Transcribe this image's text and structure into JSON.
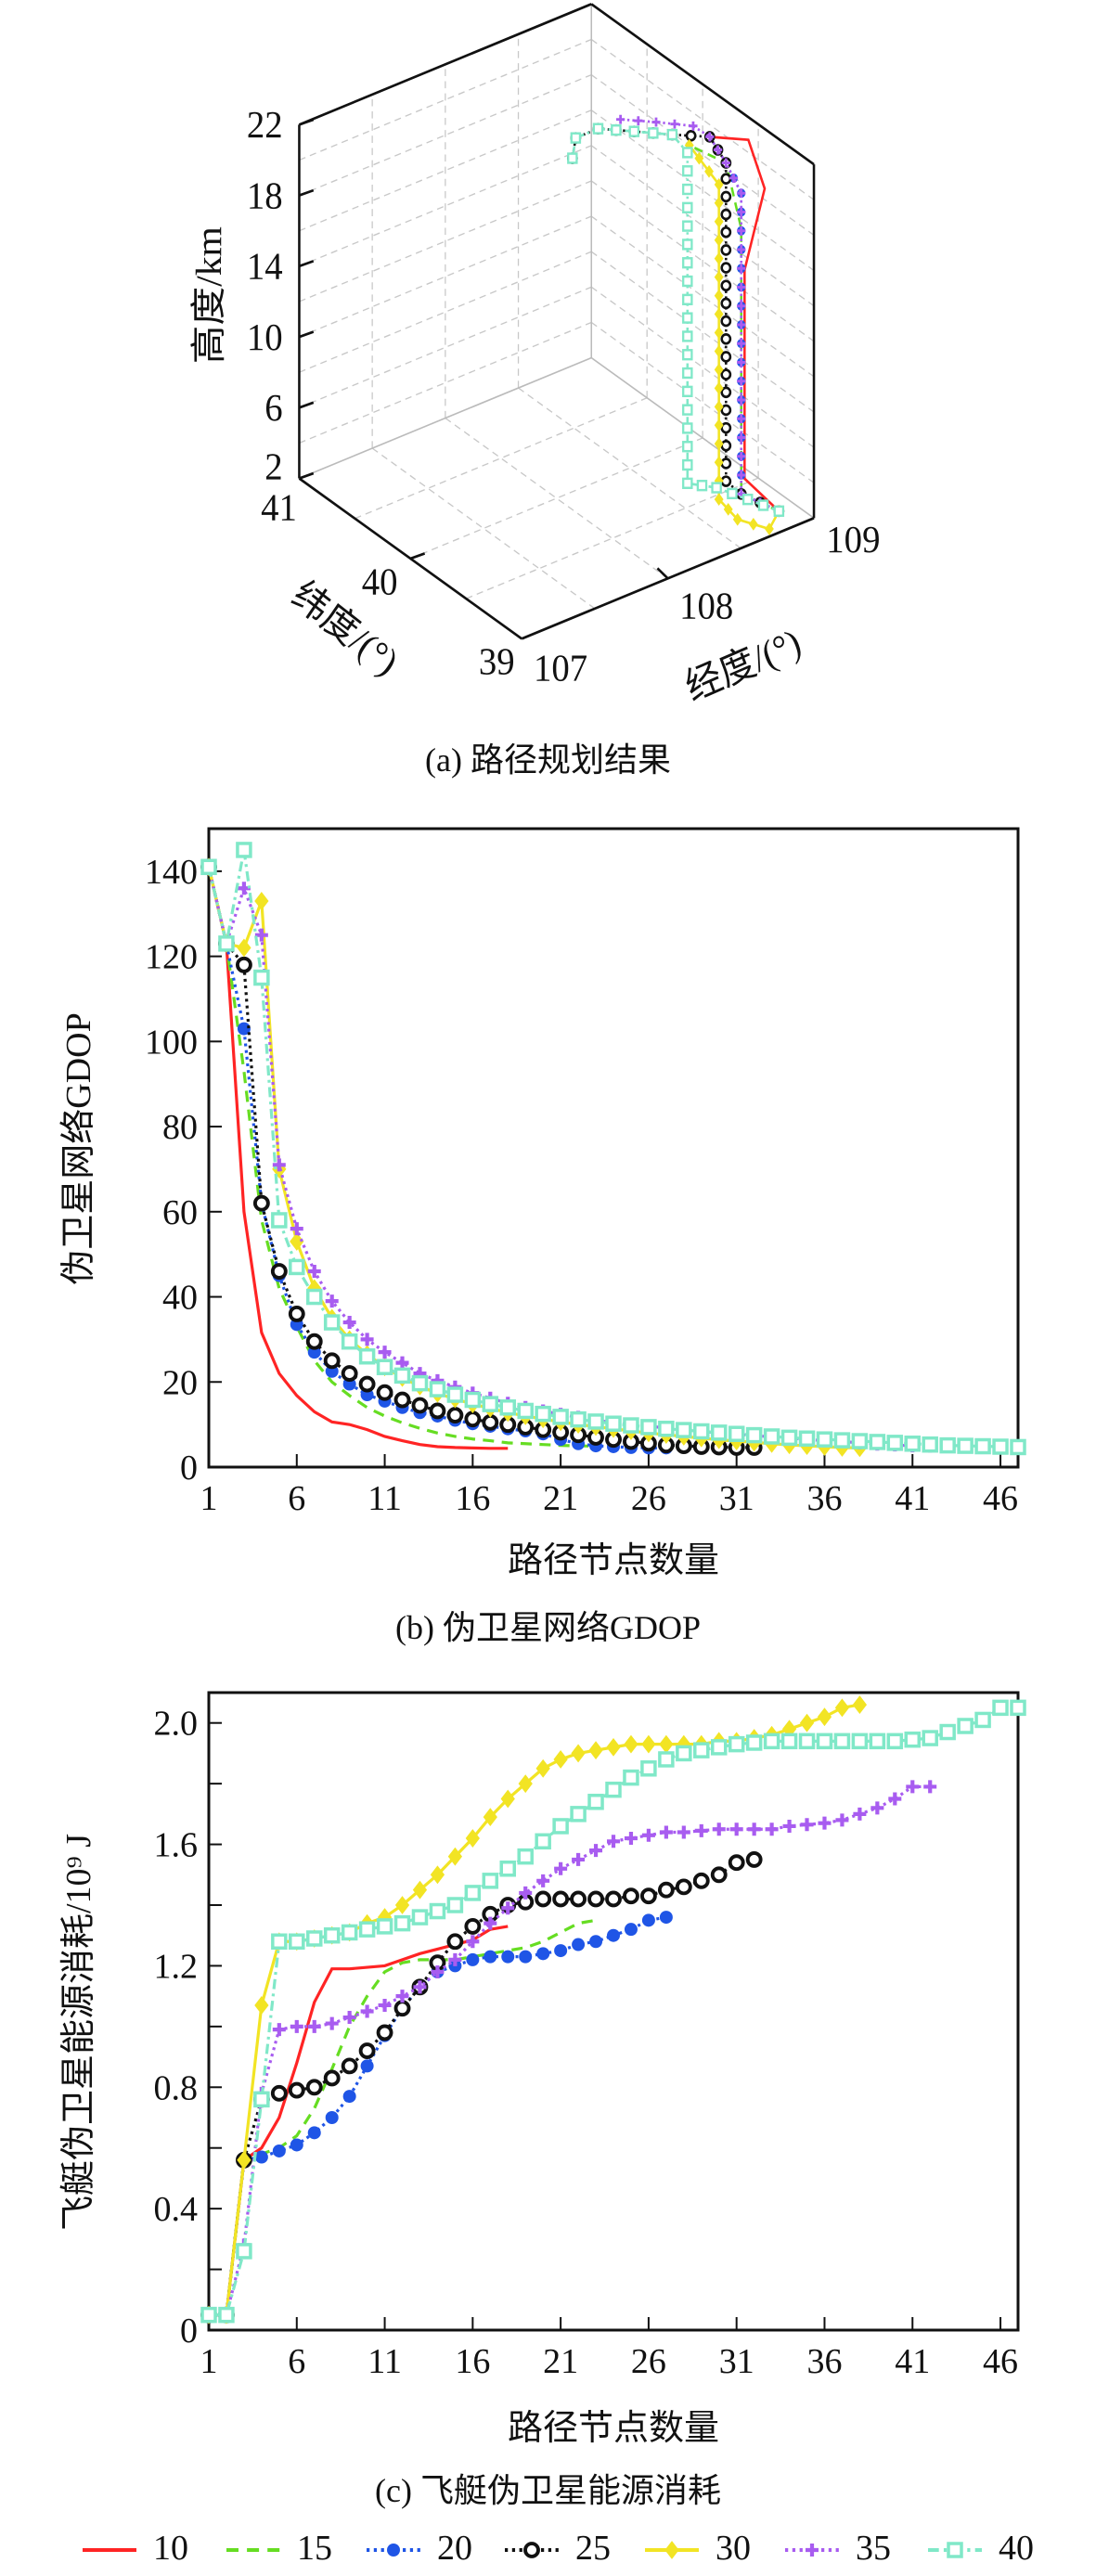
{
  "figure": {
    "caption_a": "(a) 路径规划结果",
    "caption_b": "(b) 伪卫星网络GDOP",
    "caption_c": "(c) 飞艇伪卫星能源消耗"
  },
  "legend": [
    {
      "label": "10",
      "color": "#ff2424",
      "style": "solid",
      "marker": "none"
    },
    {
      "label": "15",
      "color": "#66dd22",
      "style": "dashed",
      "marker": "none"
    },
    {
      "label": "20",
      "color": "#1f55e6",
      "style": "dotted",
      "marker": "filled-circle"
    },
    {
      "label": "25",
      "color": "#111111",
      "style": "dotted",
      "marker": "open-circle"
    },
    {
      "label": "30",
      "color": "#f2e424",
      "style": "solid",
      "marker": "diamond"
    },
    {
      "label": "35",
      "color": "#a85cf0",
      "style": "dotted",
      "marker": "plus"
    },
    {
      "label": "40",
      "color": "#80e8c8",
      "style": "dash-dot",
      "marker": "square"
    }
  ],
  "chart_data": [
    {
      "type": "line3d",
      "xlabel": "经度/(°)",
      "ylabel": "纬度/(°)",
      "zlabel": "高度/km",
      "xlim": [
        107,
        109
      ],
      "ylim": [
        39,
        41
      ],
      "zlim": [
        2,
        22
      ],
      "xticks": [
        "107",
        "108",
        "109"
      ],
      "yticks": [
        "39",
        "40",
        "41"
      ],
      "zticks": [
        "2",
        "6",
        "10",
        "14",
        "18",
        "22"
      ],
      "grid": true,
      "series": [
        {
          "name": "10",
          "points": [
            [
              108.89,
              39.17,
              2
            ],
            [
              108.83,
              39.4,
              3
            ],
            [
              108.83,
              39.4,
              14.8
            ],
            [
              108.96,
              39.39,
              19
            ],
            [
              108.97,
              39.55,
              21
            ],
            [
              108.82,
              39.7,
              21
            ]
          ]
        },
        {
          "name": "15",
          "points": [
            [
              108.89,
              39.17,
              2
            ],
            [
              108.83,
              39.43,
              2
            ],
            [
              108.83,
              39.43,
              17
            ],
            [
              108.84,
              39.58,
              20
            ],
            [
              108.68,
              39.7,
              21
            ]
          ]
        },
        {
          "name": "20",
          "points": [
            [
              108.89,
              39.17,
              2
            ],
            [
              108.83,
              39.43,
              2
            ],
            [
              108.83,
              39.43,
              19
            ],
            [
              108.84,
              39.58,
              20
            ],
            [
              108.82,
              39.7,
              21
            ]
          ]
        },
        {
          "name": "25",
          "points": [
            [
              108.89,
              39.17,
              2
            ],
            [
              108.83,
              39.43,
              2
            ],
            [
              108.84,
              39.58,
              2
            ],
            [
              108.84,
              39.58,
              19.1
            ],
            [
              108.84,
              39.58,
              20
            ],
            [
              108.82,
              39.7,
              21
            ],
            [
              108.67,
              39.84,
              21
            ],
            [
              108.47,
              39.92,
              21.5
            ],
            [
              108.33,
              40.06,
              21.5
            ],
            [
              108.23,
              40.13,
              21
            ],
            [
              108.2,
              40.12,
              20
            ]
          ]
        },
        {
          "name": "30",
          "points": [
            [
              108.89,
              39.17,
              2
            ],
            [
              108.74,
              39.06,
              2
            ],
            [
              108.66,
              39.24,
              2
            ],
            [
              108.7,
              39.46,
              2
            ],
            [
              108.7,
              39.46,
              19.8
            ],
            [
              108.68,
              39.7,
              21
            ]
          ]
        },
        {
          "name": "35",
          "points": [
            [
              108.89,
              39.17,
              2
            ],
            [
              108.83,
              39.43,
              2
            ],
            [
              108.83,
              39.43,
              19
            ],
            [
              108.84,
              39.58,
              20
            ],
            [
              108.82,
              39.7,
              21
            ],
            [
              108.76,
              39.77,
              21.5
            ],
            [
              108.59,
              39.88,
              21.8
            ],
            [
              108.43,
              39.99,
              22
            ]
          ]
        },
        {
          "name": "40",
          "points": [
            [
              108.89,
              39.17,
              2
            ],
            [
              108.76,
              39.56,
              2
            ],
            [
              108.66,
              39.69,
              2
            ],
            [
              108.66,
              39.69,
              20.7
            ],
            [
              108.67,
              39.84,
              21
            ],
            [
              108.47,
              39.92,
              21.5
            ],
            [
              108.33,
              40.06,
              21.5
            ],
            [
              108.23,
              40.13,
              21
            ],
            [
              108.2,
              40.12,
              20
            ]
          ]
        }
      ]
    },
    {
      "type": "line",
      "xlabel": "路径节点数量",
      "ylabel": "伪卫星网络GDOP",
      "xlim": [
        1,
        47
      ],
      "ylim": [
        0,
        150
      ],
      "xticks": [
        1,
        6,
        11,
        16,
        21,
        26,
        31,
        36,
        41,
        46
      ],
      "yticks": [
        0,
        20,
        40,
        60,
        80,
        100,
        120,
        140
      ],
      "ytick_labels": [
        "0",
        "20",
        "40",
        "60",
        "80",
        "100",
        "120",
        "140"
      ],
      "grid": false,
      "series": [
        {
          "name": "10",
          "values": [
            141,
            123,
            60,
            31.6,
            22,
            16.8,
            13,
            10.6,
            10,
            8.8,
            7.2,
            6.2,
            5.3,
            4.8,
            4.6,
            4.5,
            4.4,
            4.4
          ]
        },
        {
          "name": "15",
          "values": [
            141,
            123,
            93,
            58,
            42,
            33,
            25,
            20,
            16.8,
            14,
            12,
            10.4,
            9.1,
            8,
            7.2,
            6.6,
            6.2,
            5.7,
            5.5,
            5.3,
            5.1,
            5.0,
            4.9
          ]
        },
        {
          "name": "20",
          "values": [
            141,
            123,
            103,
            62,
            45,
            33.5,
            27,
            22.5,
            19.5,
            17,
            15.5,
            14,
            12.8,
            12,
            11,
            10.2,
            9.6,
            9,
            8.5,
            7.8,
            6.5,
            5.5,
            5,
            4.8,
            4.6,
            4.5,
            4.5
          ]
        },
        {
          "name": "25",
          "values": [
            141,
            123,
            118,
            62,
            46,
            36,
            29.5,
            25,
            22,
            19.5,
            17.5,
            15.8,
            14.5,
            13.2,
            12.2,
            11.3,
            10.5,
            10,
            9.4,
            8.8,
            8.2,
            7.6,
            7,
            6.5,
            6,
            5.6,
            5.2,
            5,
            4.8,
            4.7,
            4.6,
            4.6
          ]
        },
        {
          "name": "30",
          "values": [
            141,
            123,
            122,
            133,
            70,
            53,
            42,
            35,
            30,
            26.5,
            23.5,
            21,
            19,
            17.3,
            16,
            14.8,
            13.8,
            12.8,
            12,
            11.3,
            10.6,
            10,
            9.5,
            9,
            8.5,
            8,
            7.6,
            7.2,
            6.8,
            6.4,
            6.1,
            5.8,
            5.5,
            5.2,
            5,
            4.8,
            4.6,
            4.5
          ]
        },
        {
          "name": "35",
          "values": [
            141,
            123,
            136,
            125,
            71,
            56,
            46,
            39,
            34,
            30,
            27,
            24.5,
            22,
            20.3,
            18.8,
            17.4,
            16.2,
            15,
            14,
            13.2,
            12.4,
            11.7,
            11,
            10.5,
            10,
            9.6,
            9.2,
            8.8,
            8.4,
            8,
            7.7,
            7.4,
            7.1,
            6.8,
            6.5,
            6.2,
            6,
            5.7,
            5.4,
            5.2,
            5,
            4.9
          ]
        },
        {
          "name": "40",
          "values": [
            141,
            123,
            145,
            115,
            58,
            47,
            40,
            34,
            29.5,
            26,
            23.5,
            21.5,
            19.7,
            18.3,
            17,
            15.8,
            14.8,
            14,
            13.2,
            12.5,
            11.8,
            11.2,
            10.7,
            10.2,
            9.8,
            9.4,
            9,
            8.7,
            8.4,
            8.1,
            7.8,
            7.5,
            7.2,
            6.9,
            6.7,
            6.5,
            6.3,
            6.1,
            5.9,
            5.7,
            5.5,
            5.3,
            5.1,
            5,
            4.9,
            4.8,
            4.7
          ]
        }
      ]
    },
    {
      "type": "line",
      "xlabel": "路径节点数量",
      "ylabel": "飞艇伪卫星能源消耗/10⁹ J",
      "xlim": [
        1,
        47
      ],
      "ylim": [
        0,
        2.1
      ],
      "xticks": [
        1,
        6,
        11,
        16,
        21,
        26,
        31,
        36,
        41,
        46
      ],
      "yticks": [
        0,
        0.4,
        0.8,
        1.2,
        1.6,
        2.0
      ],
      "ytick_labels": [
        "0",
        "0.4",
        "0.8",
        "1.2",
        "1.6",
        "2.0"
      ],
      "minor_yticks": [
        0.2,
        0.6,
        1.0,
        1.4,
        1.8
      ],
      "grid": false,
      "series": [
        {
          "name": "10",
          "values": [
            0.05,
            0.05,
            0.56,
            0.6,
            0.7,
            0.88,
            1.08,
            1.19,
            1.19,
            1.195,
            1.2,
            1.22,
            1.24,
            1.255,
            1.27,
            1.285,
            1.32,
            1.33
          ]
        },
        {
          "name": "15",
          "values": [
            0.05,
            0.05,
            0.56,
            0.58,
            0.6,
            0.64,
            0.73,
            0.86,
            1.0,
            1.1,
            1.18,
            1.21,
            1.22,
            1.22,
            1.22,
            1.23,
            1.24,
            1.25,
            1.26,
            1.28,
            1.31,
            1.34,
            1.35
          ]
        },
        {
          "name": "20",
          "values": [
            0.05,
            0.05,
            0.56,
            0.57,
            0.59,
            0.61,
            0.65,
            0.7,
            0.77,
            0.87,
            0.97,
            1.06,
            1.13,
            1.18,
            1.2,
            1.22,
            1.23,
            1.23,
            1.23,
            1.24,
            1.25,
            1.27,
            1.28,
            1.3,
            1.32,
            1.35,
            1.36
          ]
        },
        {
          "name": "25",
          "values": [
            0.05,
            0.05,
            0.56,
            0.76,
            0.78,
            0.79,
            0.8,
            0.83,
            0.87,
            0.92,
            0.98,
            1.06,
            1.13,
            1.21,
            1.28,
            1.33,
            1.37,
            1.4,
            1.41,
            1.42,
            1.42,
            1.42,
            1.42,
            1.42,
            1.43,
            1.43,
            1.45,
            1.46,
            1.48,
            1.5,
            1.54,
            1.55
          ]
        },
        {
          "name": "30",
          "values": [
            0.05,
            0.05,
            0.56,
            1.07,
            1.28,
            1.28,
            1.29,
            1.3,
            1.31,
            1.34,
            1.36,
            1.4,
            1.45,
            1.5,
            1.56,
            1.62,
            1.69,
            1.75,
            1.8,
            1.85,
            1.88,
            1.9,
            1.91,
            1.92,
            1.93,
            1.93,
            1.93,
            1.93,
            1.93,
            1.94,
            1.94,
            1.95,
            1.96,
            1.98,
            2.0,
            2.02,
            2.05,
            2.06
          ]
        },
        {
          "name": "35",
          "values": [
            0.05,
            0.05,
            0.28,
            0.78,
            0.99,
            1.0,
            1.0,
            1.01,
            1.03,
            1.05,
            1.07,
            1.1,
            1.13,
            1.18,
            1.22,
            1.28,
            1.34,
            1.39,
            1.44,
            1.48,
            1.52,
            1.55,
            1.58,
            1.61,
            1.62,
            1.63,
            1.64,
            1.64,
            1.645,
            1.65,
            1.65,
            1.65,
            1.65,
            1.66,
            1.665,
            1.67,
            1.68,
            1.7,
            1.72,
            1.75,
            1.79,
            1.79
          ]
        },
        {
          "name": "40",
          "values": [
            0.05,
            0.05,
            0.26,
            0.76,
            1.28,
            1.28,
            1.29,
            1.3,
            1.31,
            1.32,
            1.33,
            1.34,
            1.36,
            1.38,
            1.4,
            1.44,
            1.48,
            1.52,
            1.56,
            1.61,
            1.66,
            1.7,
            1.74,
            1.78,
            1.82,
            1.85,
            1.88,
            1.9,
            1.91,
            1.92,
            1.93,
            1.935,
            1.94,
            1.94,
            1.94,
            1.94,
            1.94,
            1.94,
            1.94,
            1.94,
            1.945,
            1.95,
            1.97,
            1.99,
            2.01,
            2.05,
            2.05
          ]
        }
      ]
    }
  ]
}
